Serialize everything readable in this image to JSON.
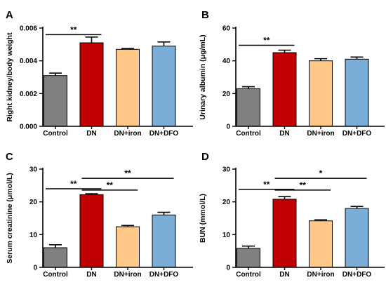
{
  "colors": {
    "Control": "#808080",
    "DN": "#c00000",
    "DN+iron": "#ffc888",
    "DN+DFO": "#7aaed9"
  },
  "chart_data": [
    {
      "panel": "A",
      "type": "bar",
      "categories": [
        "Control",
        "DN",
        "DN+iron",
        "DN+DFO"
      ],
      "values": [
        0.0031,
        0.0051,
        0.0047,
        0.0049
      ],
      "errors": [
        0.00015,
        0.00035,
        5e-05,
        0.00025
      ],
      "ylabel": "Right kidney/body weight",
      "ylim": [
        0,
        0.006
      ],
      "yticks": [
        0,
        0.002,
        0.004,
        0.006
      ],
      "ytick_labels": [
        "0.000",
        "0.002",
        "0.004",
        "0.006"
      ],
      "significance": [
        {
          "from": 0,
          "to": 1,
          "label": "**",
          "y": 0.0056
        }
      ]
    },
    {
      "panel": "B",
      "type": "bar",
      "categories": [
        "Control",
        "DN",
        "DN+iron",
        "DN+DFO"
      ],
      "values": [
        23,
        45,
        40,
        41
      ],
      "errors": [
        1.2,
        1.5,
        1.3,
        1.3
      ],
      "ylabel": "Urinary albumin (μg/mL)",
      "ylim": [
        0,
        60
      ],
      "yticks": [
        0,
        20,
        40,
        60
      ],
      "ytick_labels": [
        "0",
        "20",
        "40",
        "60"
      ],
      "significance": [
        {
          "from": 0,
          "to": 1,
          "label": "**",
          "y": 49.5
        }
      ]
    },
    {
      "panel": "C",
      "type": "bar",
      "categories": [
        "Control",
        "DN",
        "DN+iron",
        "DN+DFO"
      ],
      "values": [
        6,
        22.2,
        12.4,
        16
      ],
      "errors": [
        0.9,
        0.3,
        0.4,
        0.8
      ],
      "ylabel": "Serum creatinine (μmol/L)",
      "ylim": [
        0,
        30
      ],
      "yticks": [
        0,
        10,
        20,
        30
      ],
      "ytick_labels": [
        "0",
        "10",
        "20",
        "30"
      ],
      "significance": [
        {
          "from": 0,
          "to": 1,
          "label": "**",
          "y": 24
        },
        {
          "from": 1,
          "to": 2,
          "label": "**",
          "y": 23.6
        },
        {
          "from": 1,
          "to": 3,
          "label": "**",
          "y": 27.2
        }
      ]
    },
    {
      "panel": "D",
      "type": "bar",
      "categories": [
        "Control",
        "DN",
        "DN+iron",
        "DN+DFO"
      ],
      "values": [
        5.8,
        20.8,
        14.2,
        18
      ],
      "errors": [
        0.7,
        0.8,
        0.3,
        0.6
      ],
      "ylabel": "BUN (mmol/L)",
      "ylim": [
        0,
        30
      ],
      "yticks": [
        0,
        10,
        20,
        30
      ],
      "ytick_labels": [
        "0",
        "10",
        "20",
        "30"
      ],
      "significance": [
        {
          "from": 0,
          "to": 1,
          "label": "**",
          "y": 23.8
        },
        {
          "from": 1,
          "to": 2,
          "label": "**",
          "y": 23.6
        },
        {
          "from": 1,
          "to": 3,
          "label": "*",
          "y": 27.2
        }
      ]
    }
  ]
}
